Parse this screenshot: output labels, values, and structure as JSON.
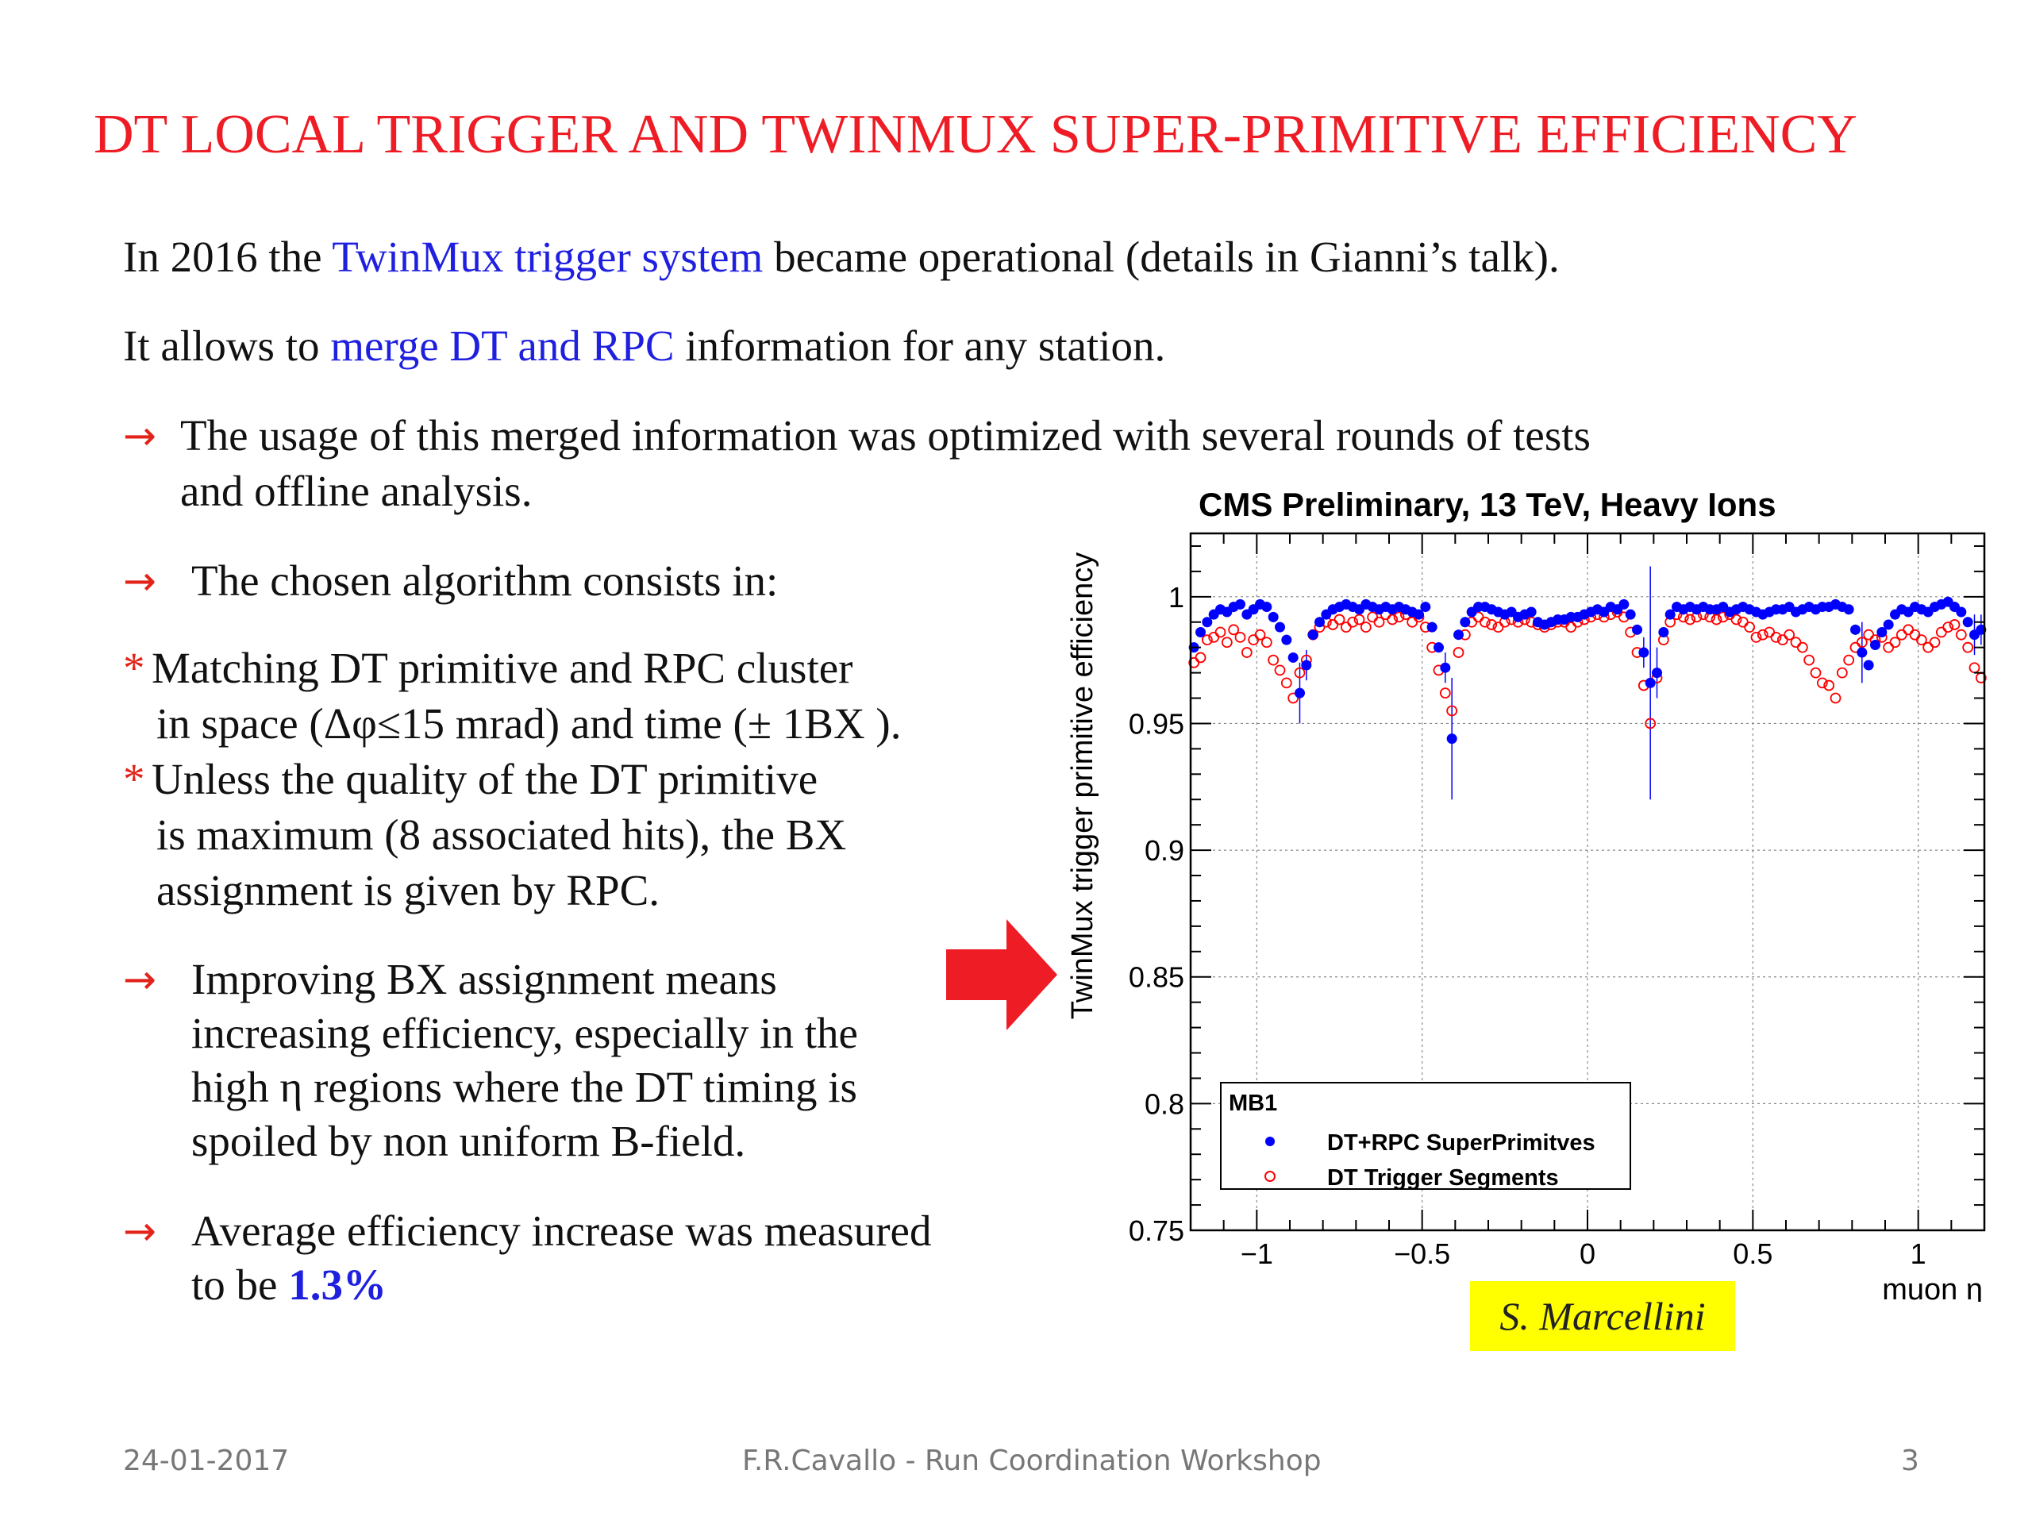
{
  "slide": {
    "title": "DT LOCAL TRIGGER AND TWINMUX SUPER-PRIMITIVE EFFICIENCY",
    "intro1": {
      "pre": "In 2016 the ",
      "highlight": "TwinMux trigger system",
      "post": " became operational (details in Gianni’s talk)."
    },
    "intro2": {
      "pre": "It allows to ",
      "highlight": "merge DT and RPC",
      "post": " information for any station."
    },
    "arrow_glyph": "→",
    "star_glyph": "*",
    "bullet1": {
      "line1": "The usage of this merged information was optimized with several rounds of tests",
      "line2": "and offline analysis."
    },
    "bullet2": "The chosen algorithm consists in:",
    "star1": {
      "line1": "Matching DT primitive and RPC cluster",
      "line2": "in space (Δφ≤15 mrad) and time (± 1BX )."
    },
    "star2": {
      "line1": "Unless the quality of the DT primitive",
      "line2": "is maximum (8 associated hits), the BX",
      "line3": "assignment  is given by RPC."
    },
    "bullet3": {
      "line1": "Improving BX assignment means",
      "line2": "increasing efficiency, especially in the",
      "line3": "high η regions where the DT timing is",
      "line4": "spoiled by non uniform B-field."
    },
    "bullet4": {
      "line1": "Average efficiency increase was measured",
      "line2_pre": "to be ",
      "line2_value": "1.3%"
    },
    "credit": "S. Marcellini",
    "colors": {
      "title": "#ee1c25",
      "highlight": "#1f1fe0",
      "arrow": "#e2231a",
      "credit_bg": "#ffff00"
    }
  },
  "footer": {
    "date": "24-01-2017",
    "center": "F.R.Cavallo - Run Coordination Workshop",
    "page": "3"
  },
  "chart_data": {
    "type": "scatter",
    "title": "CMS Preliminary, 13 TeV, Heavy Ions",
    "xlabel": "muon η",
    "ylabel": "TwinMux trigger primitive efficiency",
    "xlim": [
      -1.2,
      1.2
    ],
    "ylim": [
      0.75,
      1.025
    ],
    "xticks": [
      -1,
      -0.5,
      0,
      0.5,
      1
    ],
    "xtick_labels": [
      "−1",
      "−0.5",
      "0",
      "0.5",
      "1"
    ],
    "yticks": [
      0.75,
      0.8,
      0.85,
      0.9,
      0.95,
      1
    ],
    "ytick_labels": [
      "0.75",
      "0.8",
      "0.85",
      "0.9",
      "0.95",
      "1"
    ],
    "grid": true,
    "legend": {
      "placement": "bottom-left",
      "header": "MB1"
    },
    "series": [
      {
        "name": "DT+RPC SuperPrimitves",
        "marker": "filled-circle",
        "color": "#0000ff",
        "x": [
          -1.19,
          -1.17,
          -1.15,
          -1.13,
          -1.11,
          -1.09,
          -1.07,
          -1.05,
          -1.03,
          -1.01,
          -0.99,
          -0.97,
          -0.95,
          -0.93,
          -0.91,
          -0.89,
          -0.87,
          -0.85,
          -0.83,
          -0.81,
          -0.79,
          -0.77,
          -0.75,
          -0.73,
          -0.71,
          -0.69,
          -0.67,
          -0.65,
          -0.63,
          -0.61,
          -0.59,
          -0.57,
          -0.55,
          -0.53,
          -0.51,
          -0.49,
          -0.47,
          -0.45,
          -0.43,
          -0.41,
          -0.39,
          -0.37,
          -0.35,
          -0.33,
          -0.31,
          -0.29,
          -0.27,
          -0.25,
          -0.23,
          -0.21,
          -0.19,
          -0.17,
          -0.15,
          -0.13,
          -0.11,
          -0.09,
          -0.07,
          -0.05,
          -0.03,
          -0.01,
          0.01,
          0.03,
          0.05,
          0.07,
          0.09,
          0.11,
          0.13,
          0.15,
          0.17,
          0.19,
          0.21,
          0.23,
          0.25,
          0.27,
          0.29,
          0.31,
          0.33,
          0.35,
          0.37,
          0.39,
          0.41,
          0.43,
          0.45,
          0.47,
          0.49,
          0.51,
          0.53,
          0.55,
          0.57,
          0.59,
          0.61,
          0.63,
          0.65,
          0.67,
          0.69,
          0.71,
          0.73,
          0.75,
          0.77,
          0.79,
          0.81,
          0.83,
          0.85,
          0.87,
          0.89,
          0.91,
          0.93,
          0.95,
          0.97,
          0.99,
          1.01,
          1.03,
          1.05,
          1.07,
          1.09,
          1.11,
          1.13,
          1.15,
          1.17,
          1.19
        ],
        "y": [
          0.98,
          0.986,
          0.99,
          0.993,
          0.995,
          0.994,
          0.996,
          0.997,
          0.993,
          0.995,
          0.997,
          0.996,
          0.992,
          0.988,
          0.983,
          0.976,
          0.962,
          0.973,
          0.985,
          0.99,
          0.993,
          0.995,
          0.996,
          0.997,
          0.996,
          0.995,
          0.997,
          0.996,
          0.995,
          0.996,
          0.995,
          0.996,
          0.995,
          0.994,
          0.993,
          0.996,
          0.988,
          0.98,
          0.972,
          0.944,
          0.985,
          0.99,
          0.994,
          0.996,
          0.996,
          0.995,
          0.994,
          0.993,
          0.994,
          0.992,
          0.993,
          0.994,
          0.99,
          0.989,
          0.99,
          0.991,
          0.991,
          0.992,
          0.992,
          0.993,
          0.994,
          0.995,
          0.994,
          0.996,
          0.995,
          0.997,
          0.993,
          0.987,
          0.978,
          0.966,
          0.97,
          0.986,
          0.993,
          0.996,
          0.995,
          0.996,
          0.995,
          0.996,
          0.995,
          0.995,
          0.996,
          0.994,
          0.995,
          0.996,
          0.995,
          0.994,
          0.993,
          0.994,
          0.995,
          0.995,
          0.996,
          0.994,
          0.995,
          0.996,
          0.995,
          0.996,
          0.996,
          0.997,
          0.996,
          0.995,
          0.987,
          0.978,
          0.973,
          0.981,
          0.986,
          0.989,
          0.993,
          0.995,
          0.994,
          0.996,
          0.995,
          0.994,
          0.996,
          0.997,
          0.998,
          0.996,
          0.994,
          0.99,
          0.985,
          0.987
        ],
        "yerr": [
          0,
          0,
          0,
          0,
          0,
          0,
          0,
          0,
          0,
          0,
          0,
          0,
          0,
          0,
          0,
          0,
          0.012,
          0.006,
          0,
          0,
          0,
          0,
          0,
          0,
          0,
          0,
          0,
          0,
          0,
          0,
          0,
          0,
          0,
          0,
          0,
          0,
          0,
          0,
          0.006,
          0.024,
          0,
          0,
          0,
          0,
          0,
          0,
          0,
          0,
          0,
          0,
          0,
          0,
          0,
          0,
          0,
          0,
          0,
          0,
          0,
          0,
          0,
          0,
          0,
          0,
          0,
          0,
          0,
          0,
          0.006,
          0.046,
          0.01,
          0,
          0,
          0,
          0,
          0,
          0,
          0,
          0,
          0,
          0,
          0,
          0,
          0,
          0,
          0,
          0,
          0,
          0,
          0,
          0,
          0,
          0,
          0,
          0,
          0,
          0,
          0,
          0,
          0,
          0,
          0.012,
          0,
          0,
          0,
          0,
          0,
          0,
          0,
          0,
          0,
          0,
          0,
          0,
          0,
          0,
          0,
          0,
          0.008,
          0.006
        ]
      },
      {
        "name": "DT Trigger Segments",
        "marker": "open-circle",
        "color": "#ff0000",
        "x": [
          -1.19,
          -1.17,
          -1.15,
          -1.13,
          -1.11,
          -1.09,
          -1.07,
          -1.05,
          -1.03,
          -1.01,
          -0.99,
          -0.97,
          -0.95,
          -0.93,
          -0.91,
          -0.89,
          -0.87,
          -0.85,
          -0.83,
          -0.81,
          -0.79,
          -0.77,
          -0.75,
          -0.73,
          -0.71,
          -0.69,
          -0.67,
          -0.65,
          -0.63,
          -0.61,
          -0.59,
          -0.57,
          -0.55,
          -0.53,
          -0.51,
          -0.49,
          -0.47,
          -0.45,
          -0.43,
          -0.41,
          -0.39,
          -0.37,
          -0.35,
          -0.33,
          -0.31,
          -0.29,
          -0.27,
          -0.25,
          -0.23,
          -0.21,
          -0.19,
          -0.17,
          -0.15,
          -0.13,
          -0.11,
          -0.09,
          -0.07,
          -0.05,
          -0.03,
          -0.01,
          0.01,
          0.03,
          0.05,
          0.07,
          0.09,
          0.11,
          0.13,
          0.15,
          0.17,
          0.19,
          0.21,
          0.23,
          0.25,
          0.27,
          0.29,
          0.31,
          0.33,
          0.35,
          0.37,
          0.39,
          0.41,
          0.43,
          0.45,
          0.47,
          0.49,
          0.51,
          0.53,
          0.55,
          0.57,
          0.59,
          0.61,
          0.63,
          0.65,
          0.67,
          0.69,
          0.71,
          0.73,
          0.75,
          0.77,
          0.79,
          0.81,
          0.83,
          0.85,
          0.87,
          0.89,
          0.91,
          0.93,
          0.95,
          0.97,
          0.99,
          1.01,
          1.03,
          1.05,
          1.07,
          1.09,
          1.11,
          1.13,
          1.15,
          1.17,
          1.19
        ],
        "y": [
          0.974,
          0.976,
          0.983,
          0.984,
          0.986,
          0.982,
          0.987,
          0.984,
          0.978,
          0.983,
          0.985,
          0.982,
          0.975,
          0.971,
          0.966,
          0.96,
          0.97,
          0.975,
          0.985,
          0.988,
          0.99,
          0.989,
          0.991,
          0.988,
          0.99,
          0.991,
          0.988,
          0.992,
          0.99,
          0.993,
          0.991,
          0.992,
          0.993,
          0.99,
          0.992,
          0.988,
          0.98,
          0.971,
          0.962,
          0.955,
          0.978,
          0.985,
          0.99,
          0.992,
          0.99,
          0.989,
          0.988,
          0.99,
          0.991,
          0.99,
          0.991,
          0.99,
          0.989,
          0.988,
          0.989,
          0.99,
          0.99,
          0.988,
          0.99,
          0.991,
          0.992,
          0.993,
          0.992,
          0.993,
          0.994,
          0.992,
          0.986,
          0.978,
          0.965,
          0.95,
          0.968,
          0.983,
          0.99,
          0.993,
          0.992,
          0.991,
          0.992,
          0.993,
          0.992,
          0.991,
          0.992,
          0.993,
          0.991,
          0.99,
          0.988,
          0.984,
          0.985,
          0.986,
          0.984,
          0.983,
          0.985,
          0.982,
          0.98,
          0.975,
          0.97,
          0.966,
          0.965,
          0.96,
          0.97,
          0.975,
          0.98,
          0.982,
          0.985,
          0.983,
          0.984,
          0.98,
          0.982,
          0.985,
          0.987,
          0.985,
          0.983,
          0.98,
          0.982,
          0.986,
          0.988,
          0.989,
          0.985,
          0.98,
          0.972,
          0.968
        ]
      }
    ]
  }
}
